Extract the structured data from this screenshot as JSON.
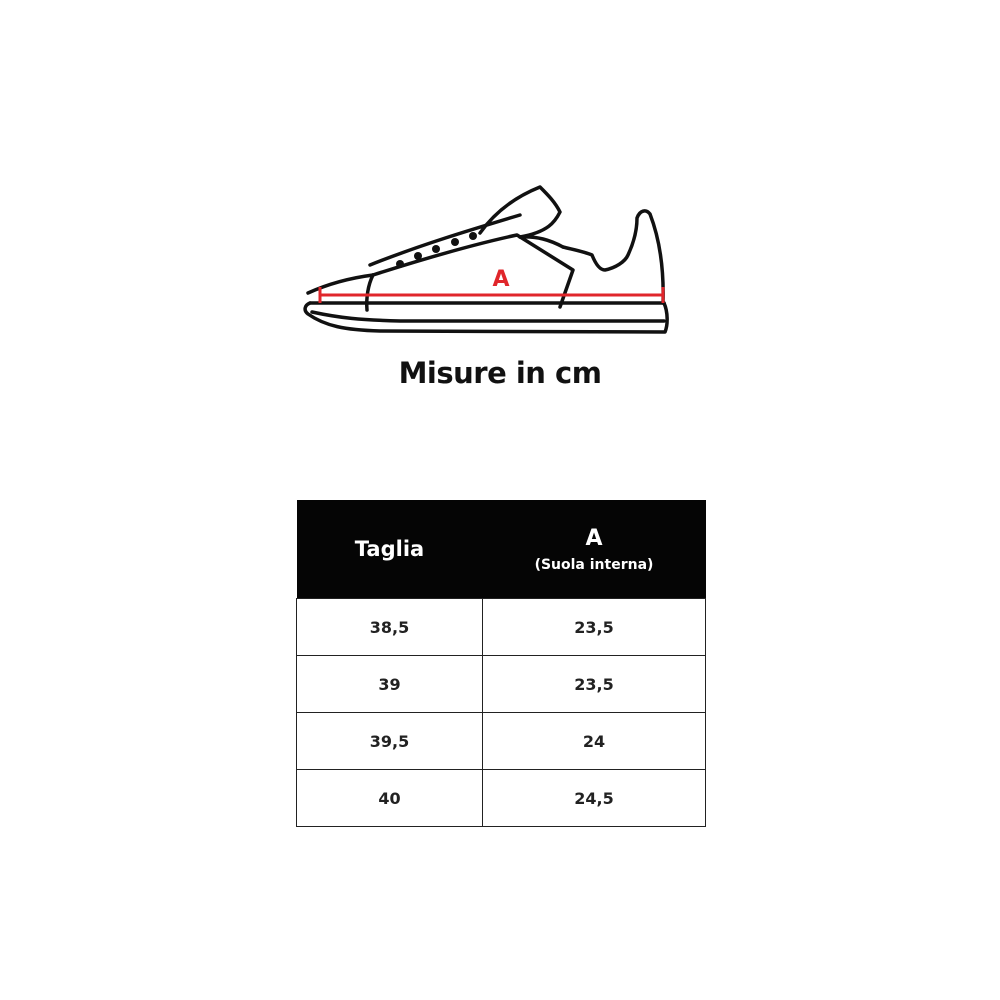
{
  "diagram": {
    "measure_label": "A",
    "measure_color": "#e0262b"
  },
  "title": "Misure in cm",
  "table": {
    "headers": {
      "size": "Taglia",
      "measure": "A",
      "measure_note": "(Suola interna)"
    },
    "rows": [
      {
        "size": "38,5",
        "a": "23,5"
      },
      {
        "size": "39",
        "a": "23,5"
      },
      {
        "size": "39,5",
        "a": "24"
      },
      {
        "size": "40",
        "a": "24,5"
      }
    ]
  }
}
